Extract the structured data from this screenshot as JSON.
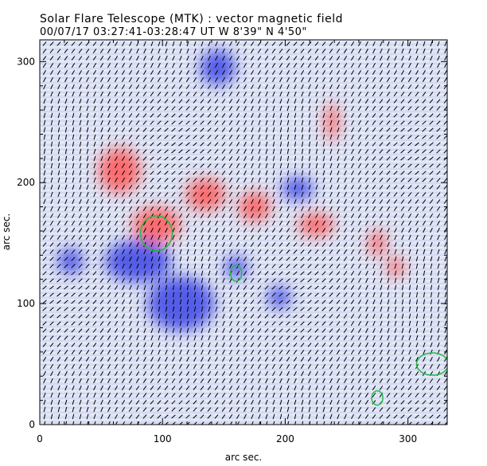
{
  "header": {
    "title": "Solar Flare Telescope (MTK) : vector magnetic field",
    "subtitle": "00/07/17   03:27:41-03:28:47 UT     W 8'39\"   N 4'50\""
  },
  "chart_data": {
    "type": "heatmap",
    "title": "Solar Flare Telescope (MTK) : vector magnetic field",
    "xlabel": "arc sec.",
    "ylabel": "arc sec.",
    "xlim": [
      0,
      332
    ],
    "ylim": [
      0,
      318
    ],
    "xticks": [
      "0",
      "100",
      "200",
      "300"
    ],
    "yticks": [
      "0",
      "100",
      "200",
      "300"
    ],
    "colors": {
      "positive_polarity": "#ff5555",
      "negative_polarity": "#3c46e6",
      "background": "#dfe4f5",
      "vectors": "#000000",
      "contours": "#22bb44"
    },
    "positive_regions": [
      {
        "x": 95,
        "y": 165
      },
      {
        "x": 65,
        "y": 210
      },
      {
        "x": 135,
        "y": 190
      },
      {
        "x": 175,
        "y": 180
      },
      {
        "x": 225,
        "y": 165
      },
      {
        "x": 238,
        "y": 250
      },
      {
        "x": 275,
        "y": 150
      },
      {
        "x": 290,
        "y": 130
      }
    ],
    "negative_regions": [
      {
        "x": 80,
        "y": 135
      },
      {
        "x": 115,
        "y": 100
      },
      {
        "x": 25,
        "y": 135
      },
      {
        "x": 160,
        "y": 130
      },
      {
        "x": 210,
        "y": 195
      },
      {
        "x": 145,
        "y": 295
      },
      {
        "x": 195,
        "y": 105
      }
    ],
    "contours": [
      {
        "x": 95,
        "y": 158
      },
      {
        "x": 160,
        "y": 125
      },
      {
        "x": 275,
        "y": 22
      },
      {
        "x": 320,
        "y": 50
      }
    ]
  }
}
